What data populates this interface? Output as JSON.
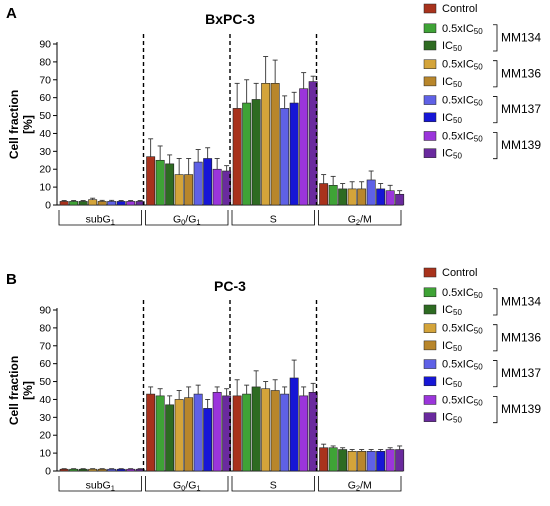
{
  "colors": {
    "Control": "#a8321c",
    "0.5xIC50 MM134": "#3fa336",
    "IC50 MM134": "#2e6b22",
    "0.5xIC50 MM136": "#d4a43a",
    "IC50 MM136": "#b8862b",
    "0.5xIC50 MM137": "#5f61e6",
    "IC50 MM137": "#1616d6",
    "0.5xIC50 MM139": "#9b35db",
    "IC50 MM139": "#6a2a9e"
  },
  "legend": {
    "control": "Control",
    "dose_half_prefix": "0.5xIC",
    "dose_full_prefix": "IC",
    "dose_sub": "50",
    "groups": [
      "MM134",
      "MM136",
      "MM137",
      "MM139"
    ]
  },
  "chart_data": [
    {
      "panel": "A",
      "type": "bar",
      "title": "BxPC-3",
      "ylabel_line1": "Cell fraction",
      "ylabel_line2": "[%]",
      "ylim": [
        0,
        90
      ],
      "yticks": [
        0,
        10,
        20,
        30,
        40,
        50,
        60,
        70,
        80,
        90
      ],
      "categories": [
        "subG1",
        "G0/G1",
        "S",
        "G2/M"
      ],
      "series": [
        {
          "name": "Control",
          "values": [
            2,
            27,
            54,
            12
          ],
          "errors": [
            0.5,
            10,
            14,
            5
          ]
        },
        {
          "name": "0.5xIC50 MM134",
          "values": [
            2,
            25,
            57,
            11
          ],
          "errors": [
            0.5,
            8,
            13,
            5
          ]
        },
        {
          "name": "IC50 MM134",
          "values": [
            2,
            23,
            59,
            9
          ],
          "errors": [
            0.5,
            5,
            9,
            3
          ]
        },
        {
          "name": "0.5xIC50 MM136",
          "values": [
            3,
            17,
            68,
            9
          ],
          "errors": [
            0.8,
            9,
            15,
            4
          ]
        },
        {
          "name": "IC50 MM136",
          "values": [
            2,
            17,
            68,
            9
          ],
          "errors": [
            0.6,
            9,
            13,
            4
          ]
        },
        {
          "name": "0.5xIC50 MM137",
          "values": [
            2,
            24,
            54,
            14
          ],
          "errors": [
            0.6,
            7,
            7,
            5
          ]
        },
        {
          "name": "IC50 MM137",
          "values": [
            2,
            26,
            57,
            9
          ],
          "errors": [
            0.5,
            6,
            6,
            3
          ]
        },
        {
          "name": "0.5xIC50 MM139",
          "values": [
            2,
            20,
            65,
            8
          ],
          "errors": [
            0.5,
            6,
            9,
            3
          ]
        },
        {
          "name": "IC50 MM139",
          "values": [
            2,
            19,
            69,
            6
          ],
          "errors": [
            0.5,
            3,
            3,
            2
          ]
        }
      ]
    },
    {
      "panel": "B",
      "type": "bar",
      "title": "PC-3",
      "ylabel_line1": "Cell fraction",
      "ylabel_line2": "[%]",
      "ylim": [
        0,
        90
      ],
      "yticks": [
        0,
        10,
        20,
        30,
        40,
        50,
        60,
        70,
        80,
        90
      ],
      "categories": [
        "subG1",
        "G0/G1",
        "S",
        "G2/M"
      ],
      "series": [
        {
          "name": "Control",
          "values": [
            1,
            43,
            42,
            13
          ],
          "errors": [
            0.3,
            4,
            9,
            2
          ]
        },
        {
          "name": "0.5xIC50 MM134",
          "values": [
            1,
            42,
            43,
            13
          ],
          "errors": [
            0.3,
            4,
            5,
            1
          ]
        },
        {
          "name": "IC50 MM134",
          "values": [
            1,
            37,
            47,
            12
          ],
          "errors": [
            0.3,
            5,
            9,
            1
          ]
        },
        {
          "name": "0.5xIC50 MM136",
          "values": [
            1,
            40,
            46,
            11
          ],
          "errors": [
            0.3,
            5,
            4,
            1
          ]
        },
        {
          "name": "IC50 MM136",
          "values": [
            1,
            41,
            45,
            11
          ],
          "errors": [
            0.3,
            6,
            6,
            1
          ]
        },
        {
          "name": "0.5xIC50 MM137",
          "values": [
            1,
            43,
            43,
            11
          ],
          "errors": [
            0.3,
            5,
            4,
            1
          ]
        },
        {
          "name": "IC50 MM137",
          "values": [
            1,
            35,
            52,
            11
          ],
          "errors": [
            0.3,
            5,
            10,
            1
          ]
        },
        {
          "name": "0.5xIC50 MM139",
          "values": [
            1,
            44,
            42,
            12
          ],
          "errors": [
            0.3,
            3,
            5,
            1
          ]
        },
        {
          "name": "IC50 MM139",
          "values": [
            1,
            42,
            44,
            12
          ],
          "errors": [
            0.3,
            4,
            5,
            2
          ]
        }
      ]
    }
  ]
}
